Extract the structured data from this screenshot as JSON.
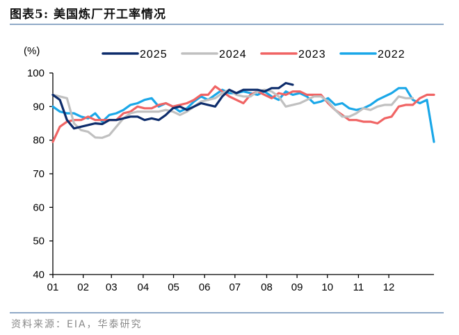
{
  "header": {
    "title": "图表5:   美国炼厂开工率情况"
  },
  "footer": {
    "source": "资料来源：EIA，华泰研究"
  },
  "chart_data": {
    "type": "line",
    "title": "美国炼厂开工率情况",
    "ylabel": "(%)",
    "xlabel": "",
    "ylim": [
      40,
      100
    ],
    "yticks": [
      40,
      50,
      60,
      70,
      80,
      90,
      100
    ],
    "xticks": [
      "01",
      "02",
      "03",
      "04",
      "05",
      "06",
      "07",
      "08",
      "09",
      "10",
      "11",
      "12"
    ],
    "x_unit": "week of year (52 weeks; month labels at month starts)",
    "legend_position": "top",
    "grid": false,
    "series": [
      {
        "name": "2025",
        "color": "#0d2c6b",
        "values": [
          93.5,
          92,
          86,
          83.5,
          84,
          84.5,
          85,
          84.8,
          86,
          86,
          86.5,
          87,
          87,
          86,
          86.5,
          86,
          87.5,
          89.5,
          90,
          89,
          90,
          91,
          90.5,
          90,
          93,
          95,
          94,
          95,
          95,
          95,
          94.5,
          95.5,
          95.5,
          97,
          96.5
        ]
      },
      {
        "name": "2024",
        "color": "#c0c0c0",
        "values": [
          93.5,
          93,
          92.5,
          85,
          83,
          82.5,
          80.8,
          80.7,
          81.5,
          84,
          86.5,
          88,
          88.5,
          88.5,
          88.5,
          88.5,
          89,
          88.5,
          87.5,
          88.5,
          90,
          91.5,
          92,
          92.5,
          94,
          95,
          93.5,
          93,
          93,
          94.5,
          95,
          94.5,
          93,
          90,
          90.5,
          91,
          92,
          93,
          93,
          91.5,
          89,
          87,
          87,
          88,
          89.5,
          89,
          90,
          90.5,
          90.5,
          93,
          92.5,
          92.5
        ]
      },
      {
        "name": "2023",
        "color": "#f06464",
        "values": [
          79.5,
          84,
          85.5,
          86,
          86,
          87,
          86,
          86,
          86,
          86,
          88,
          88.5,
          90,
          89.5,
          89.5,
          90.5,
          91,
          90,
          90.5,
          91,
          92,
          93.5,
          93.5,
          96,
          94.5,
          93,
          92,
          91,
          93.5,
          94.5,
          93.5,
          92.5,
          94,
          93.5,
          94.5,
          94.5,
          93.5,
          93.5,
          93.5,
          91,
          89,
          87.5,
          86,
          86,
          85.5,
          85.5,
          85,
          86.5,
          87,
          90,
          90.5,
          90.5,
          92.5,
          93.5,
          93.5
        ]
      },
      {
        "name": "2022",
        "color": "#1aa7e8",
        "values": [
          90,
          88.5,
          88,
          88,
          87,
          86.5,
          88,
          85.5,
          87.5,
          88,
          89,
          90.5,
          91,
          92,
          92.5,
          90,
          91,
          90,
          88.5,
          89.5,
          91.5,
          93,
          92,
          93.5,
          95,
          94,
          94,
          94.5,
          94,
          93.5,
          94.5,
          93,
          92,
          94.5,
          93.5,
          94,
          93,
          91,
          91.5,
          92.5,
          90.5,
          91,
          89.5,
          89,
          89.5,
          90.5,
          92,
          93,
          94,
          95.5,
          95.5,
          92,
          91,
          92,
          79.5
        ]
      }
    ]
  }
}
